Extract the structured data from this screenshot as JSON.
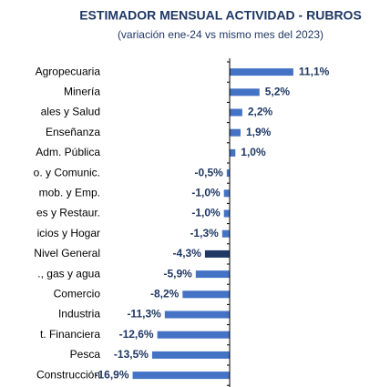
{
  "chart_data": {
    "type": "bar",
    "orientation": "horizontal",
    "title": "ESTIMADOR MENSUAL ACTIVIDAD - RUBROS",
    "subtitle": "(variación ene-24 vs mismo mes del 2023)",
    "categories": [
      "Agropecuaria",
      "Minería",
      "ales y Salud",
      "Enseñanza",
      "Adm. Pública",
      "o. y Comunic.",
      "mob. y Emp.",
      "es y Restaur.",
      "icios y Hogar",
      "Nivel General",
      "., gas y agua",
      "Comercio",
      "Industria",
      "t. Financiera",
      "Pesca",
      "Construcción"
    ],
    "values": [
      11.1,
      5.2,
      2.2,
      1.9,
      1.0,
      -0.5,
      -1.0,
      -1.0,
      -1.3,
      -4.3,
      -5.9,
      -8.2,
      -11.3,
      -12.6,
      -13.5,
      -16.9
    ],
    "value_labels": [
      "11,1%",
      "5,2%",
      "2,2%",
      "1,9%",
      "1,0%",
      "-0,5%",
      "-1,0%",
      "-1,0%",
      "-1,3%",
      "-4,3%",
      "-5,9%",
      "-8,2%",
      "-11,3%",
      "-12,6%",
      "-13,5%",
      "-16,9%"
    ],
    "color": "#4472c4",
    "highlight": {
      "category": "Nivel General",
      "color": "#1f3864"
    }
  }
}
